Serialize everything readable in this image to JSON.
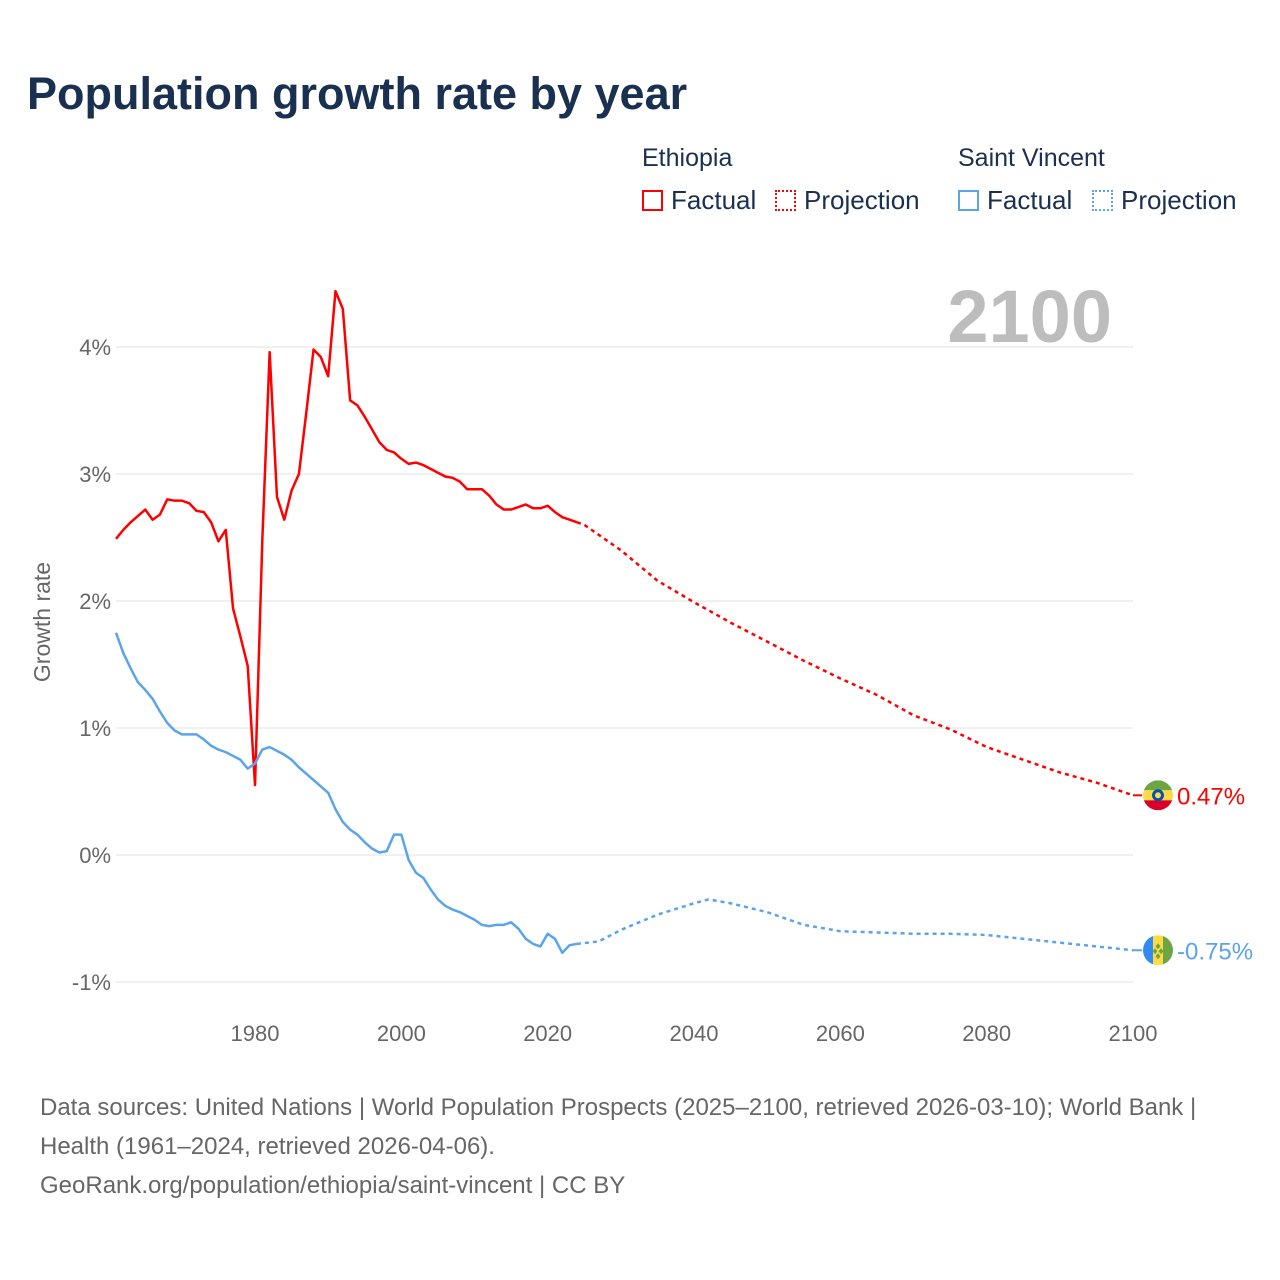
{
  "title": "Population growth rate by year",
  "legend": {
    "groups": [
      {
        "name": "Ethiopia",
        "factual": "Factual",
        "projection": "Projection",
        "color": "#ff0000"
      },
      {
        "name": "Saint Vincent",
        "factual": "Factual",
        "projection": "Projection",
        "color": "#5ba4ea"
      }
    ]
  },
  "year_display": "2100",
  "footer": {
    "sources": "Data sources: United Nations | World Population Prospects (2025–2100, retrieved 2026-03-10); World Bank | Health (1961–2024, retrieved 2026-04-06).",
    "link": "GeoRank.org/population/ethiopia/saint-vincent | CC BY"
  },
  "chart_data": {
    "type": "line",
    "title": "Population growth rate by year",
    "xlabel": "",
    "ylabel": "Growth rate",
    "xlim": [
      1961,
      2100
    ],
    "ylim": [
      -1.2,
      4.5
    ],
    "x_ticks": [
      1980,
      2000,
      2020,
      2040,
      2060,
      2080,
      2100
    ],
    "y_ticks": [
      {
        "v": 4,
        "label": "4%"
      },
      {
        "v": 3,
        "label": "3%"
      },
      {
        "v": 2,
        "label": "2%"
      },
      {
        "v": 1,
        "label": "1%"
      },
      {
        "v": 0,
        "label": "0%"
      },
      {
        "v": -1,
        "label": "-1%"
      }
    ],
    "grid": true,
    "series": [
      {
        "name": "Ethiopia",
        "color": "#ff0000",
        "flag": "ethiopia-flag",
        "end_label": "0.47%",
        "factual": {
          "x_start": 1961,
          "values": [
            2.49,
            2.56,
            2.62,
            2.67,
            2.72,
            2.64,
            2.68,
            2.8,
            2.79,
            2.79,
            2.77,
            2.71,
            2.7,
            2.62,
            2.47,
            2.56,
            1.94,
            1.72,
            1.49,
            0.55,
            2.48,
            3.96,
            2.82,
            2.64,
            2.87,
            3.0,
            3.48,
            3.98,
            3.92,
            3.77,
            4.44,
            4.3,
            3.58,
            3.54,
            3.45,
            3.35,
            3.25,
            3.19,
            3.17,
            3.12,
            3.08,
            3.09,
            3.07,
            3.04,
            3.01,
            2.98,
            2.97,
            2.94,
            2.88,
            2.88,
            2.88,
            2.83,
            2.76,
            2.72,
            2.72,
            2.74,
            2.76,
            2.73,
            2.73,
            2.75,
            2.7,
            2.66,
            2.64,
            2.62
          ]
        },
        "projection": {
          "x": [
            2024,
            2025,
            2030,
            2035,
            2040,
            2045,
            2050,
            2055,
            2060,
            2065,
            2070,
            2075,
            2080,
            2085,
            2090,
            2095,
            2100
          ],
          "values": [
            2.62,
            2.6,
            2.4,
            2.16,
            1.99,
            1.83,
            1.68,
            1.53,
            1.39,
            1.26,
            1.1,
            0.99,
            0.85,
            0.75,
            0.65,
            0.57,
            0.47
          ]
        }
      },
      {
        "name": "Saint Vincent",
        "color": "#5ba4ea",
        "flag": "saint-vincent-flag",
        "end_label": "-0.75%",
        "factual": {
          "x_start": 1961,
          "values": [
            1.75,
            1.59,
            1.47,
            1.36,
            1.3,
            1.23,
            1.13,
            1.04,
            0.98,
            0.95,
            0.95,
            0.95,
            0.91,
            0.86,
            0.83,
            0.81,
            0.78,
            0.75,
            0.68,
            0.72,
            0.83,
            0.85,
            0.82,
            0.79,
            0.75,
            0.69,
            0.64,
            0.59,
            0.54,
            0.49,
            0.36,
            0.26,
            0.2,
            0.16,
            0.1,
            0.05,
            0.02,
            0.03,
            0.16,
            0.16,
            -0.04,
            -0.14,
            -0.18,
            -0.27,
            -0.35,
            -0.4,
            -0.43,
            -0.45,
            -0.48,
            -0.51,
            -0.55,
            -0.56,
            -0.55,
            -0.55,
            -0.53,
            -0.58,
            -0.66,
            -0.7,
            -0.72,
            -0.62,
            -0.66,
            -0.77,
            -0.71,
            -0.7
          ]
        },
        "projection": {
          "x": [
            2024,
            2027,
            2030,
            2035,
            2040,
            2042,
            2045,
            2050,
            2055,
            2060,
            2065,
            2070,
            2075,
            2080,
            2085,
            2090,
            2095,
            2100
          ],
          "values": [
            -0.7,
            -0.68,
            -0.59,
            -0.47,
            -0.38,
            -0.35,
            -0.38,
            -0.45,
            -0.55,
            -0.6,
            -0.61,
            -0.62,
            -0.62,
            -0.63,
            -0.66,
            -0.69,
            -0.72,
            -0.75
          ]
        }
      }
    ]
  }
}
